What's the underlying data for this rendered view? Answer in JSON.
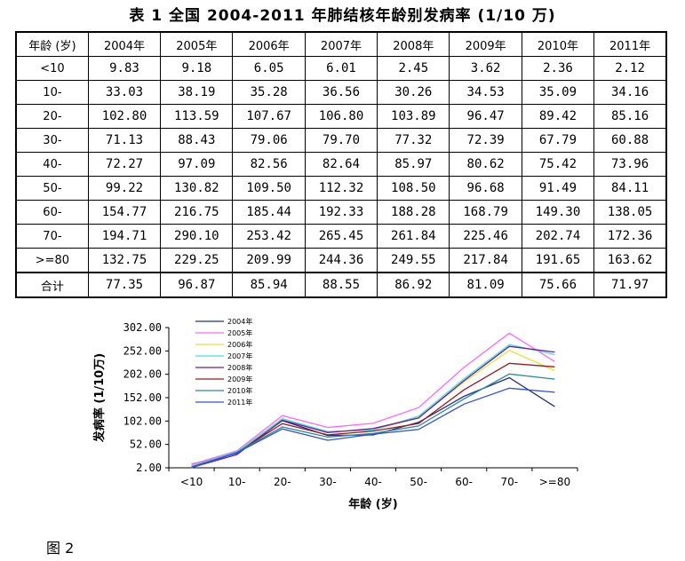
{
  "table": {
    "title": "表 1  全国 2004-2011 年肺结核年龄别发病率 (1/10 万)",
    "header": [
      "年龄 (岁)",
      "2004年",
      "2005年",
      "2006年",
      "2007年",
      "2008年",
      "2009年",
      "2010年",
      "2011年"
    ],
    "rows": [
      [
        "<10",
        "9.83",
        "9.18",
        "6.05",
        "6.01",
        "2.45",
        "3.62",
        "2.36",
        "2.12"
      ],
      [
        "10-",
        "33.03",
        "38.19",
        "35.28",
        "36.56",
        "30.26",
        "34.53",
        "35.09",
        "34.16"
      ],
      [
        "20-",
        "102.80",
        "113.59",
        "107.67",
        "106.80",
        "103.89",
        "96.47",
        "89.42",
        "85.16"
      ],
      [
        "30-",
        "71.13",
        "88.43",
        "79.06",
        "79.70",
        "77.32",
        "72.39",
        "67.79",
        "60.88"
      ],
      [
        "40-",
        "72.27",
        "97.09",
        "82.56",
        "82.64",
        "85.97",
        "80.62",
        "75.42",
        "73.96"
      ],
      [
        "50-",
        "99.22",
        "130.82",
        "109.50",
        "112.32",
        "108.50",
        "96.68",
        "91.49",
        "84.11"
      ],
      [
        "60-",
        "154.77",
        "216.75",
        "185.44",
        "192.33",
        "188.28",
        "168.79",
        "149.30",
        "138.05"
      ],
      [
        "70-",
        "194.71",
        "290.10",
        "253.42",
        "265.45",
        "261.84",
        "225.46",
        "202.74",
        "172.36"
      ],
      [
        ">=80",
        "132.75",
        "229.25",
        "209.99",
        "244.36",
        "249.55",
        "217.84",
        "191.65",
        "163.62"
      ],
      [
        "合计",
        "77.35",
        "96.87",
        "85.94",
        "88.55",
        "86.92",
        "81.09",
        "75.66",
        "71.97"
      ]
    ]
  },
  "chart_data": {
    "type": "line",
    "title": "",
    "xlabel": "年龄 (岁)",
    "ylabel": "发病率 (1/10万)",
    "categories": [
      "<10",
      "10-",
      "20-",
      "30-",
      "40-",
      "50-",
      "60-",
      "70-",
      ">=80"
    ],
    "ylim": [
      2.0,
      302.0
    ],
    "yticks": [
      "302.00",
      "252.00",
      "202.00",
      "152.00",
      "102.00",
      "52.00",
      "2.00"
    ],
    "legend_position": "top-left",
    "grid": false,
    "series": [
      {
        "name": "2004年",
        "color": "#1f2f8f",
        "values": [
          9.83,
          33.03,
          102.8,
          71.13,
          72.27,
          99.22,
          154.77,
          194.71,
          132.75
        ]
      },
      {
        "name": "2005年",
        "color": "#ff66ff",
        "values": [
          9.18,
          38.19,
          113.59,
          88.43,
          97.09,
          130.82,
          216.75,
          290.1,
          229.25
        ]
      },
      {
        "name": "2006年",
        "color": "#f0e030",
        "values": [
          6.05,
          35.28,
          107.67,
          79.06,
          82.56,
          109.5,
          185.44,
          253.42,
          209.99
        ]
      },
      {
        "name": "2007年",
        "color": "#40e0e8",
        "values": [
          6.01,
          36.56,
          106.8,
          79.7,
          82.64,
          112.32,
          192.33,
          265.45,
          244.36
        ]
      },
      {
        "name": "2008年",
        "color": "#7a1a8a",
        "values": [
          2.45,
          30.26,
          103.89,
          77.32,
          85.97,
          108.5,
          188.28,
          261.84,
          249.55
        ]
      },
      {
        "name": "2009年",
        "color": "#9a1a1a",
        "values": [
          3.62,
          34.53,
          96.47,
          72.39,
          80.62,
          96.68,
          168.79,
          225.46,
          217.84
        ]
      },
      {
        "name": "2010年",
        "color": "#2a8a9a",
        "values": [
          2.36,
          35.09,
          89.42,
          67.79,
          75.42,
          91.49,
          149.3,
          202.74,
          191.65
        ]
      },
      {
        "name": "2011年",
        "color": "#3050e0",
        "values": [
          2.12,
          34.16,
          85.16,
          60.88,
          73.96,
          84.11,
          138.05,
          172.36,
          163.62
        ]
      }
    ]
  },
  "figure_caption": "图 2"
}
